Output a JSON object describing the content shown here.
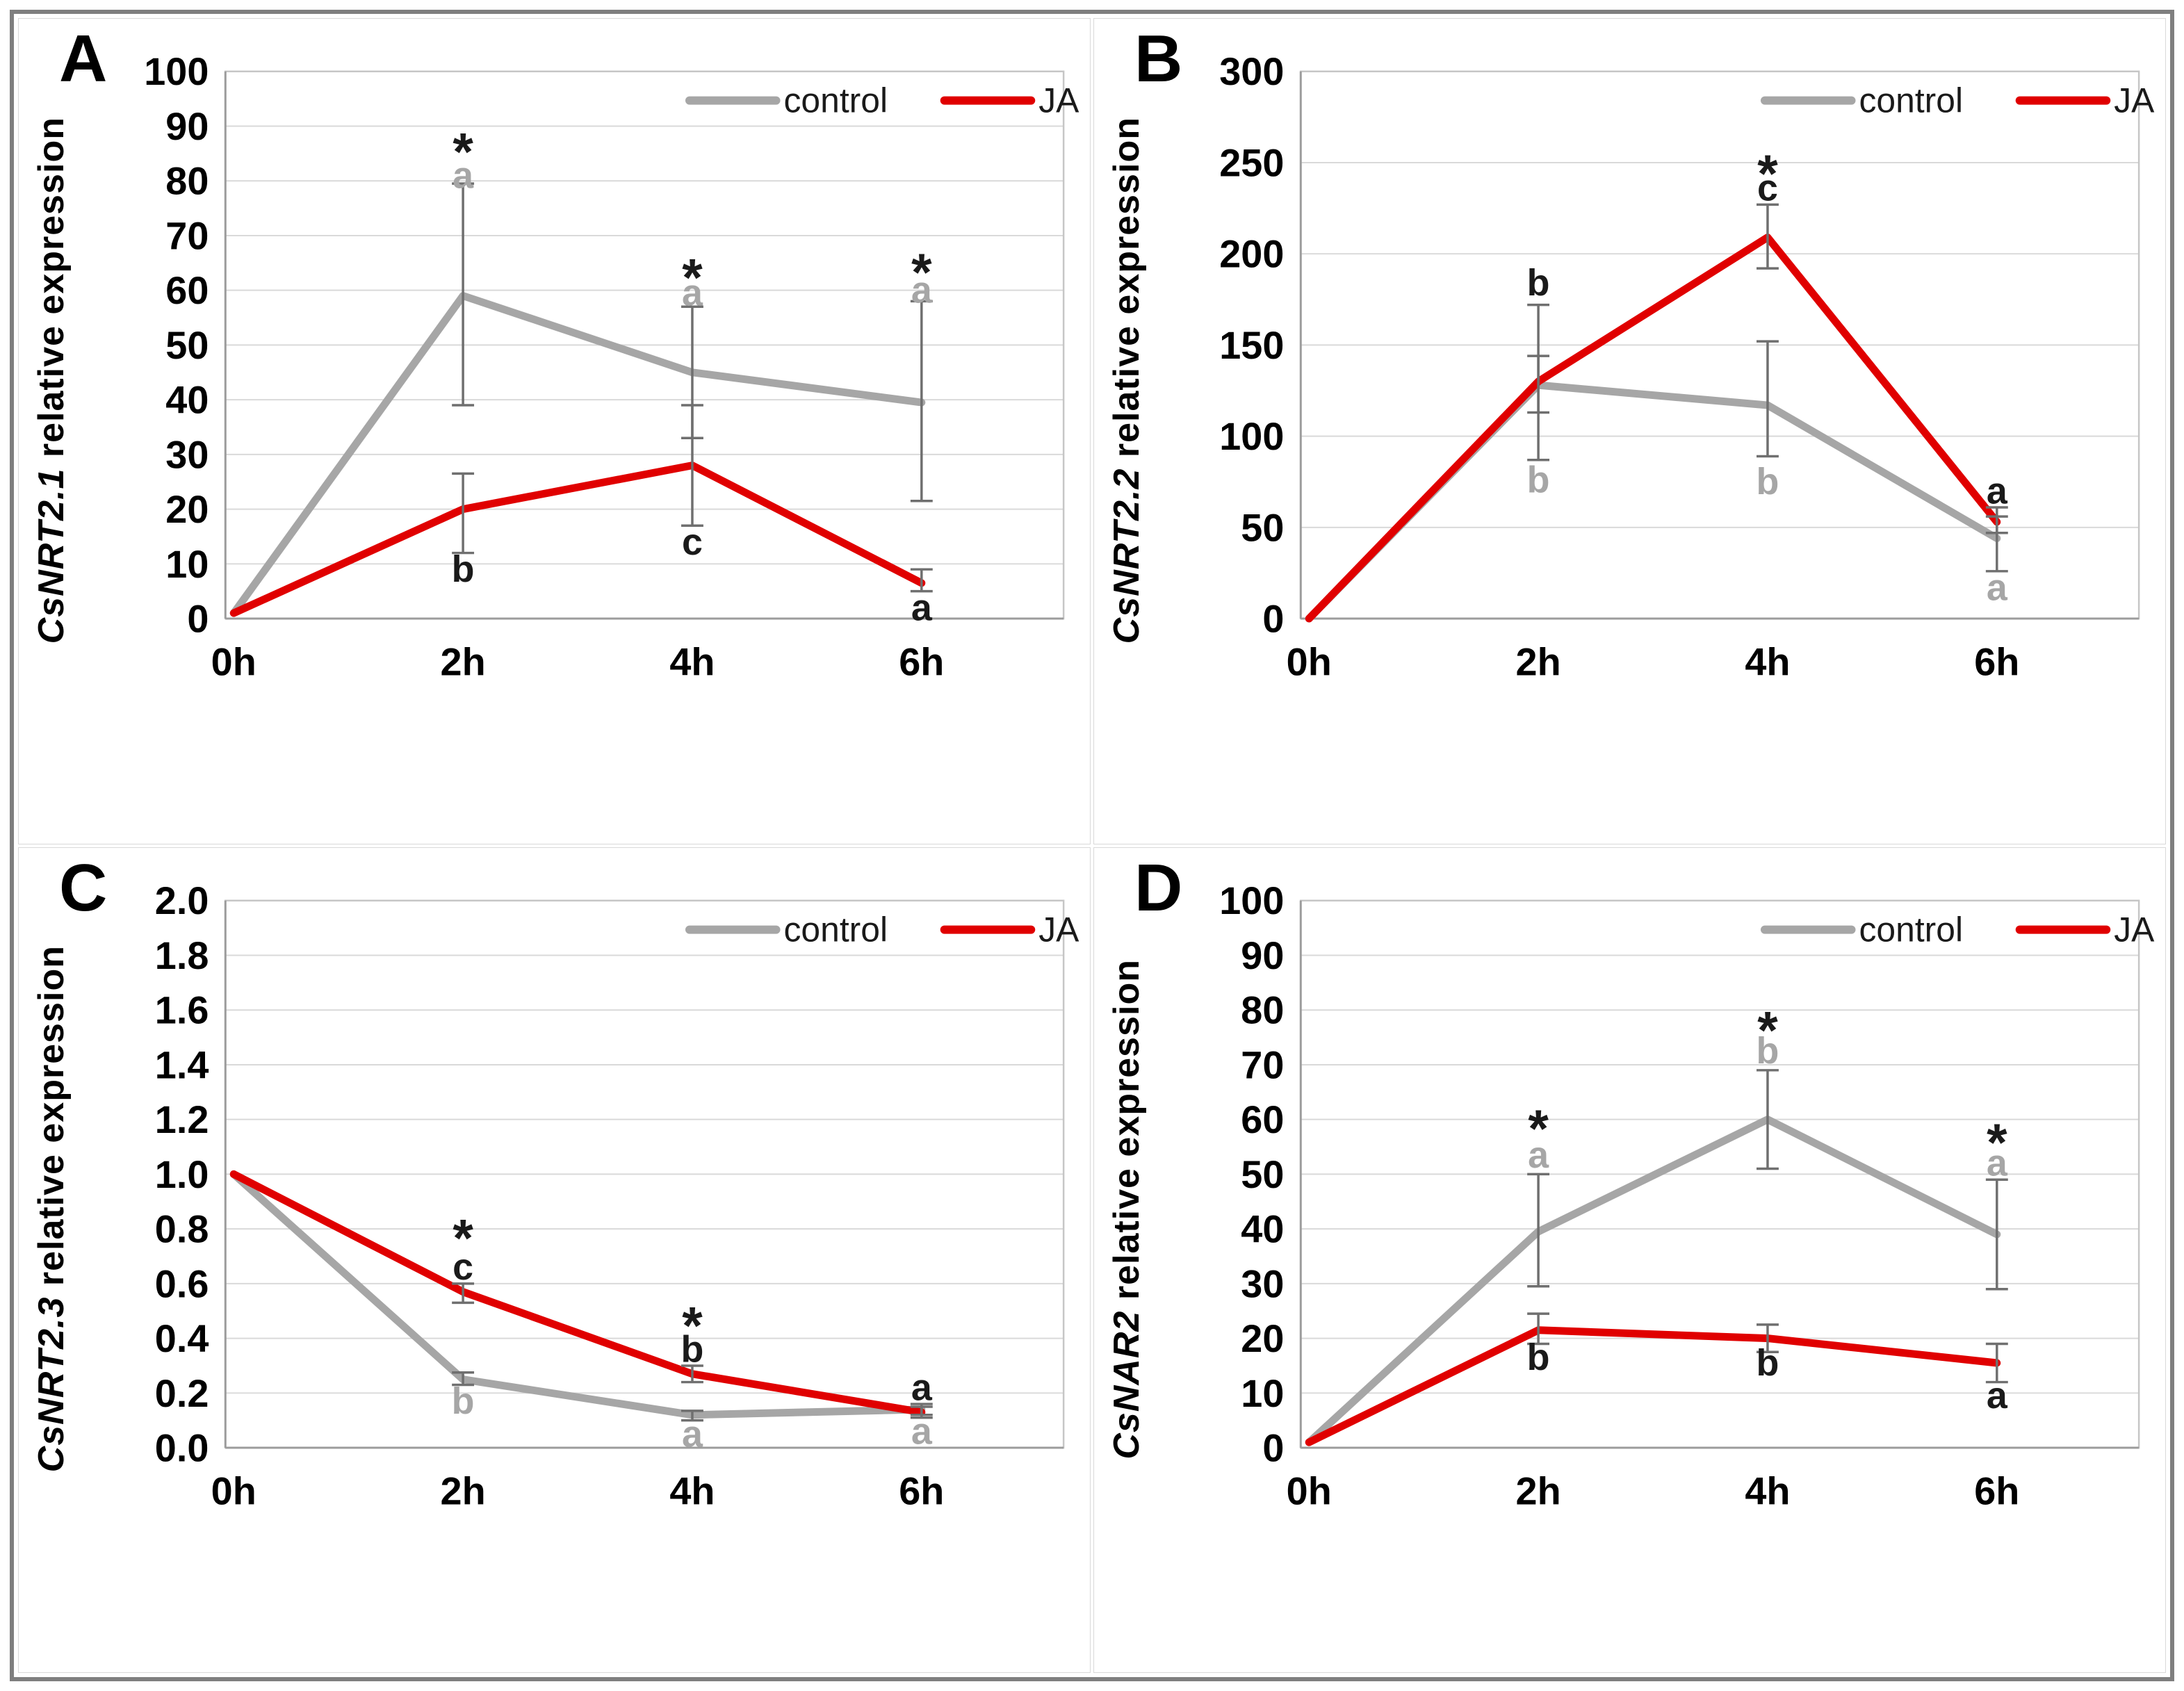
{
  "figure": {
    "colors": {
      "control": "#a6a6a6",
      "ja": "#e00000",
      "error_bar": "#6f6f6f",
      "gridline": "#d9d9d9",
      "plot_border": "#c6c6c6",
      "axis_line": "#9c9c9c",
      "text_black": "#1a1a1a",
      "text_gray": "#a6a6a6",
      "outer_border": "#7f7f7f"
    }
  },
  "panels": [
    {
      "letter": "A",
      "y_title": {
        "italic": "CsNRT2.1",
        "rest": " relative expression"
      },
      "legend": {
        "control_label": "control",
        "ja_label": "JA"
      },
      "chart_data": {
        "type": "line",
        "categories": [
          "0h",
          "2h",
          "4h",
          "6h"
        ],
        "ylim": [
          0,
          100
        ],
        "ytick_step": 10,
        "ytick_decimals": 0,
        "grid": true,
        "legend_position": "top-right",
        "series": [
          {
            "name": "control",
            "color": "#a6a6a6",
            "values": [
              1,
              59,
              45,
              39.5
            ],
            "err_lo": [
              null,
              39,
              33,
              21.5
            ],
            "err_hi": [
              null,
              79.5,
              57,
              58
            ]
          },
          {
            "name": "JA",
            "color": "#e00000",
            "values": [
              1,
              20,
              28,
              6.5
            ],
            "err_lo": [
              null,
              12,
              17,
              5
            ],
            "err_hi": [
              null,
              26.5,
              39,
              9
            ]
          }
        ],
        "annotations": [
          {
            "x": 1,
            "y": 88,
            "text": "*",
            "color": "black",
            "star": true
          },
          {
            "x": 1,
            "y": 81,
            "text": "a",
            "color": "gray"
          },
          {
            "x": 1,
            "y": 9,
            "text": "b",
            "color": "black"
          },
          {
            "x": 2,
            "y": 65,
            "text": "*",
            "color": "black",
            "star": true
          },
          {
            "x": 2,
            "y": 59.5,
            "text": "a",
            "color": "gray"
          },
          {
            "x": 2,
            "y": 14,
            "text": "c",
            "color": "black"
          },
          {
            "x": 3,
            "y": 66,
            "text": "*",
            "color": "black",
            "star": true
          },
          {
            "x": 3,
            "y": 60,
            "text": "a",
            "color": "gray"
          },
          {
            "x": 3,
            "y": 2,
            "text": "a",
            "color": "black"
          }
        ]
      }
    },
    {
      "letter": "B",
      "y_title": {
        "italic": "CsNRT2.2",
        "rest": " relative expression"
      },
      "legend": {
        "control_label": "control",
        "ja_label": "JA"
      },
      "chart_data": {
        "type": "line",
        "categories": [
          "0h",
          "2h",
          "4h",
          "6h"
        ],
        "ylim": [
          0,
          300
        ],
        "ytick_step": 50,
        "ytick_decimals": 0,
        "grid": true,
        "legend_position": "top-right",
        "series": [
          {
            "name": "control",
            "color": "#a6a6a6",
            "values": [
              0,
              128,
              117,
              44
            ],
            "err_lo": [
              null,
              87,
              89,
              26
            ],
            "err_hi": [
              null,
              144,
              152,
              56
            ]
          },
          {
            "name": "JA",
            "color": "#e00000",
            "values": [
              0,
              130,
              209,
              53
            ],
            "err_lo": [
              null,
              113,
              192,
              47
            ],
            "err_hi": [
              null,
              172,
              227,
              61
            ]
          }
        ],
        "annotations": [
          {
            "x": 1,
            "y": 184,
            "text": "b",
            "color": "black"
          },
          {
            "x": 1,
            "y": 76,
            "text": "b",
            "color": "gray"
          },
          {
            "x": 2,
            "y": 252,
            "text": "*",
            "color": "black",
            "star": true
          },
          {
            "x": 2,
            "y": 236,
            "text": "c",
            "color": "black"
          },
          {
            "x": 2,
            "y": 75,
            "text": "b",
            "color": "gray"
          },
          {
            "x": 3,
            "y": 70,
            "text": "a",
            "color": "black"
          },
          {
            "x": 3,
            "y": 17,
            "text": "a",
            "color": "gray"
          }
        ]
      }
    },
    {
      "letter": "C",
      "y_title": {
        "italic": "CsNRT2.3",
        "rest": " relative expression"
      },
      "legend": {
        "control_label": "control",
        "ja_label": "JA"
      },
      "chart_data": {
        "type": "line",
        "categories": [
          "0h",
          "2h",
          "4h",
          "6h"
        ],
        "ylim": [
          0,
          2.0
        ],
        "ytick_step": 0.2,
        "ytick_decimals": 1,
        "grid": true,
        "legend_position": "top-right",
        "series": [
          {
            "name": "control",
            "color": "#a6a6a6",
            "values": [
              1.0,
              0.25,
              0.12,
              0.14
            ],
            "err_lo": [
              null,
              0.23,
              0.1,
              0.12
            ],
            "err_hi": [
              null,
              0.275,
              0.135,
              0.16
            ]
          },
          {
            "name": "JA",
            "color": "#e00000",
            "values": [
              1.0,
              0.57,
              0.27,
              0.13
            ],
            "err_lo": [
              null,
              0.53,
              0.24,
              0.11
            ],
            "err_hi": [
              null,
              0.6,
              0.3,
              0.15
            ]
          }
        ],
        "annotations": [
          {
            "x": 1,
            "y": 0.82,
            "text": "*",
            "color": "black",
            "star": true
          },
          {
            "x": 1,
            "y": 0.66,
            "text": "c",
            "color": "black"
          },
          {
            "x": 1,
            "y": 0.17,
            "text": "b",
            "color": "gray"
          },
          {
            "x": 2,
            "y": 0.5,
            "text": "*",
            "color": "black",
            "star": true
          },
          {
            "x": 2,
            "y": 0.36,
            "text": "b",
            "color": "black"
          },
          {
            "x": 2,
            "y": 0.05,
            "text": "a",
            "color": "gray"
          },
          {
            "x": 3,
            "y": 0.22,
            "text": "a",
            "color": "black"
          },
          {
            "x": 3,
            "y": 0.06,
            "text": "a",
            "color": "gray"
          }
        ]
      }
    },
    {
      "letter": "D",
      "y_title": {
        "italic": "CsNAR2",
        "rest": " relative expression"
      },
      "legend": {
        "control_label": "control",
        "ja_label": "JA"
      },
      "chart_data": {
        "type": "line",
        "categories": [
          "0h",
          "2h",
          "4h",
          "6h"
        ],
        "ylim": [
          0,
          100
        ],
        "ytick_step": 10,
        "ytick_decimals": 0,
        "grid": true,
        "legend_position": "top-right",
        "series": [
          {
            "name": "control",
            "color": "#a6a6a6",
            "values": [
              1,
              39.5,
              60,
              39
            ],
            "err_lo": [
              null,
              29.5,
              51,
              29
            ],
            "err_hi": [
              null,
              50,
              69,
              49
            ]
          },
          {
            "name": "JA",
            "color": "#e00000",
            "values": [
              1,
              21.5,
              20,
              15.5
            ],
            "err_lo": [
              null,
              19,
              17.5,
              12
            ],
            "err_hi": [
              null,
              24.5,
              22.5,
              19
            ]
          }
        ],
        "annotations": [
          {
            "x": 1,
            "y": 61,
            "text": "*",
            "color": "black",
            "star": true
          },
          {
            "x": 1,
            "y": 53.5,
            "text": "a",
            "color": "gray"
          },
          {
            "x": 1,
            "y": 16.5,
            "text": "b",
            "color": "black"
          },
          {
            "x": 2,
            "y": 79,
            "text": "*",
            "color": "black",
            "star": true
          },
          {
            "x": 2,
            "y": 72.5,
            "text": "b",
            "color": "gray"
          },
          {
            "x": 2,
            "y": 15.5,
            "text": "b",
            "color": "black"
          },
          {
            "x": 3,
            "y": 58.5,
            "text": "*",
            "color": "black",
            "star": true
          },
          {
            "x": 3,
            "y": 52,
            "text": "a",
            "color": "gray"
          },
          {
            "x": 3,
            "y": 9.5,
            "text": "a",
            "color": "black"
          }
        ]
      }
    }
  ]
}
